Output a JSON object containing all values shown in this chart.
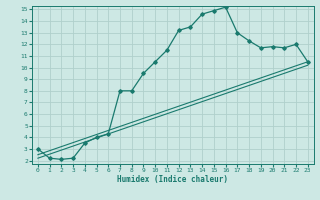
{
  "xlabel": "Humidex (Indice chaleur)",
  "bg_color": "#cde8e4",
  "grid_color": "#b0d0cc",
  "line_color": "#1a7a6e",
  "xlim": [
    -0.5,
    23.5
  ],
  "ylim": [
    1.7,
    15.3
  ],
  "yticks": [
    2,
    3,
    4,
    5,
    6,
    7,
    8,
    9,
    10,
    11,
    12,
    13,
    14,
    15
  ],
  "xticks": [
    0,
    1,
    2,
    3,
    4,
    5,
    6,
    7,
    8,
    9,
    10,
    11,
    12,
    13,
    14,
    15,
    16,
    17,
    18,
    19,
    20,
    21,
    22,
    23
  ],
  "curve_x": [
    0,
    1,
    2,
    3,
    4,
    5,
    6,
    7,
    8,
    9,
    10,
    11,
    12,
    13,
    14,
    15,
    16,
    17,
    18,
    19,
    20,
    21,
    22,
    23
  ],
  "curve_y": [
    3.0,
    2.2,
    2.1,
    2.2,
    3.5,
    4.0,
    4.3,
    8.0,
    8.0,
    9.5,
    10.5,
    11.5,
    13.2,
    13.5,
    14.6,
    14.9,
    15.2,
    13.0,
    12.3,
    11.7,
    11.8,
    11.7,
    12.0,
    10.5
  ],
  "line2_x": [
    0,
    23
  ],
  "line2_y": [
    2.5,
    10.5
  ],
  "line3_x": [
    0,
    23
  ],
  "line3_y": [
    2.2,
    10.2
  ]
}
